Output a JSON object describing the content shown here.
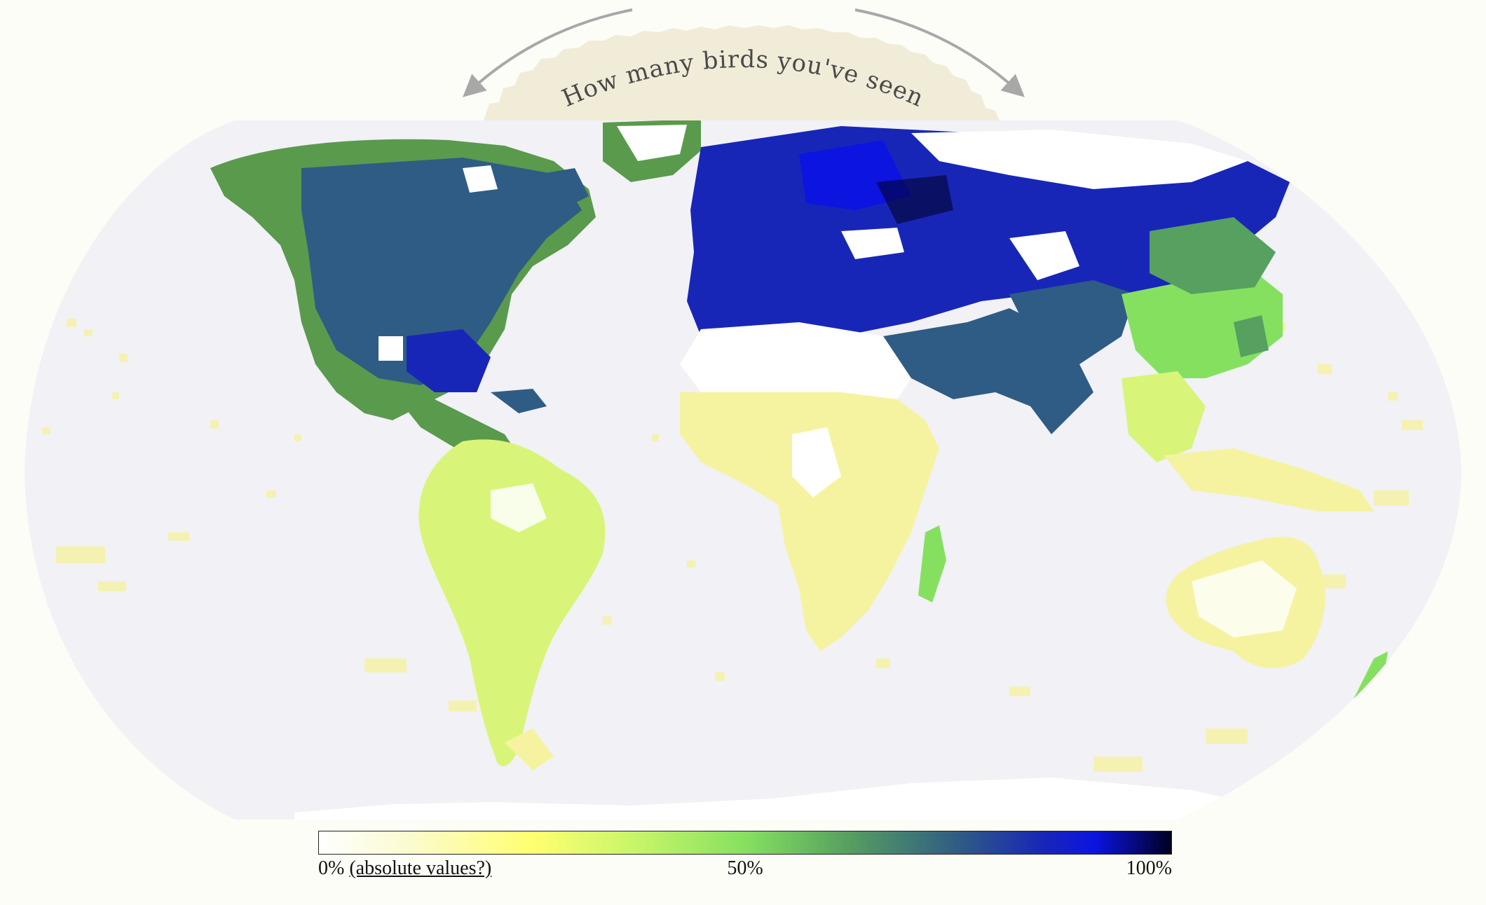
{
  "title": "How many birds you've seen",
  "legend": {
    "min_label": "0%",
    "link_label": "(absolute values?)",
    "mid_label": "50%",
    "max_label": "100%"
  },
  "colors": {
    "ocean": "#f1f1f6",
    "unseen_land": "#ffffff",
    "low": "#f6f3a0",
    "mid": "#86e060",
    "high": "#2f5c84",
    "very_high": "#0c14e0",
    "max": "#000020",
    "title_banner": "#f0ecd8",
    "arrow": "#a8a8a8"
  },
  "icons": [
    "rotate-left-arrow-icon",
    "rotate-right-arrow-icon"
  ],
  "regions": [
    {
      "name": "north-america",
      "level": 0.78
    },
    {
      "name": "greenland",
      "level": 0.55
    },
    {
      "name": "central-america",
      "level": 0.55
    },
    {
      "name": "south-america",
      "level": 0.25
    },
    {
      "name": "europe",
      "level": 0.88
    },
    {
      "name": "sahara",
      "level": 0.0
    },
    {
      "name": "africa",
      "level": 0.15
    },
    {
      "name": "madagascar",
      "level": 0.4
    },
    {
      "name": "russia",
      "level": 0.92
    },
    {
      "name": "siberia-north",
      "level": 0.0
    },
    {
      "name": "middle-east",
      "level": 0.7
    },
    {
      "name": "india",
      "level": 0.7
    },
    {
      "name": "east-asia",
      "level": 0.55
    },
    {
      "name": "southeast-asia",
      "level": 0.3
    },
    {
      "name": "indonesia",
      "level": 0.2
    },
    {
      "name": "australia",
      "level": 0.08
    },
    {
      "name": "new-zealand",
      "level": 0.35
    },
    {
      "name": "antarctica",
      "level": 0.0
    }
  ]
}
